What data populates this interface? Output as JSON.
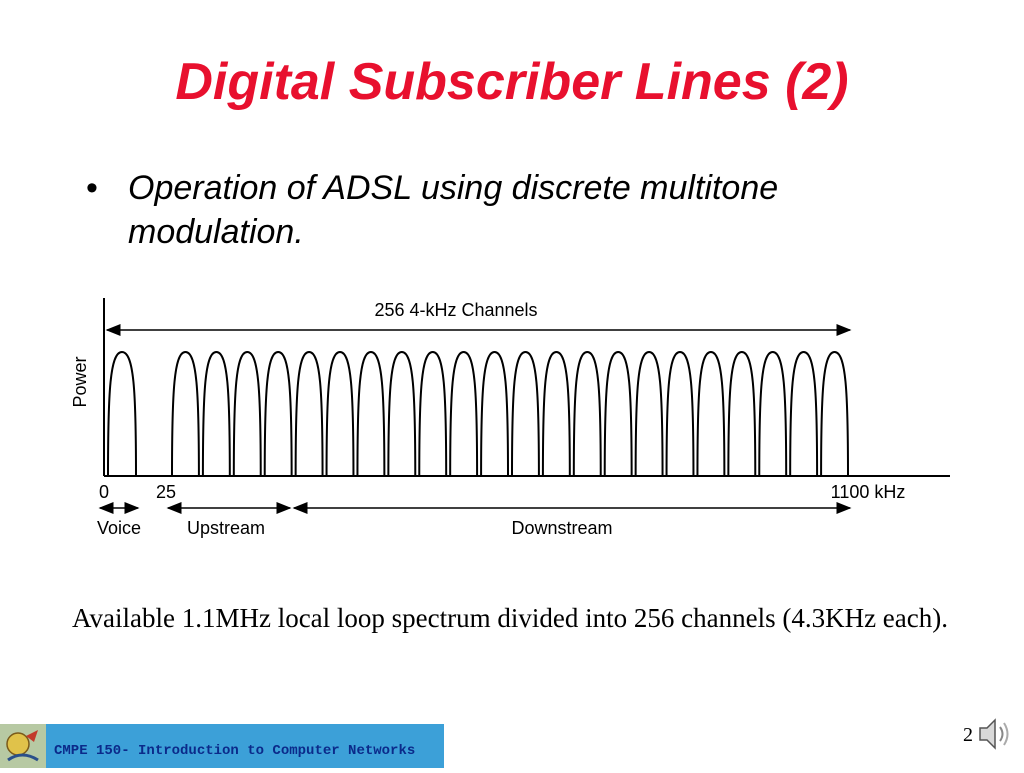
{
  "slide": {
    "title": "Digital Subscriber Lines (2)",
    "bullet": "Operation of ADSL using discrete multitone modulation.",
    "caption": "Available 1.1MHz local loop spectrum divided into 256 channels (4.3KHz each).",
    "footer": "CMPE 150- Introduction to Computer Networks",
    "page_number": "2"
  },
  "diagram": {
    "y_axis_label": "Power",
    "channels_label": "256 4-kHz Channels",
    "tick_labels": [
      "0",
      "25",
      "1100 kHz"
    ],
    "bands": [
      "Voice",
      "Upstream",
      "Downstream"
    ],
    "visible_channel_lobes": 23
  },
  "icons": {
    "footer_logo": "logo-icon",
    "speaker": "speaker-icon"
  }
}
